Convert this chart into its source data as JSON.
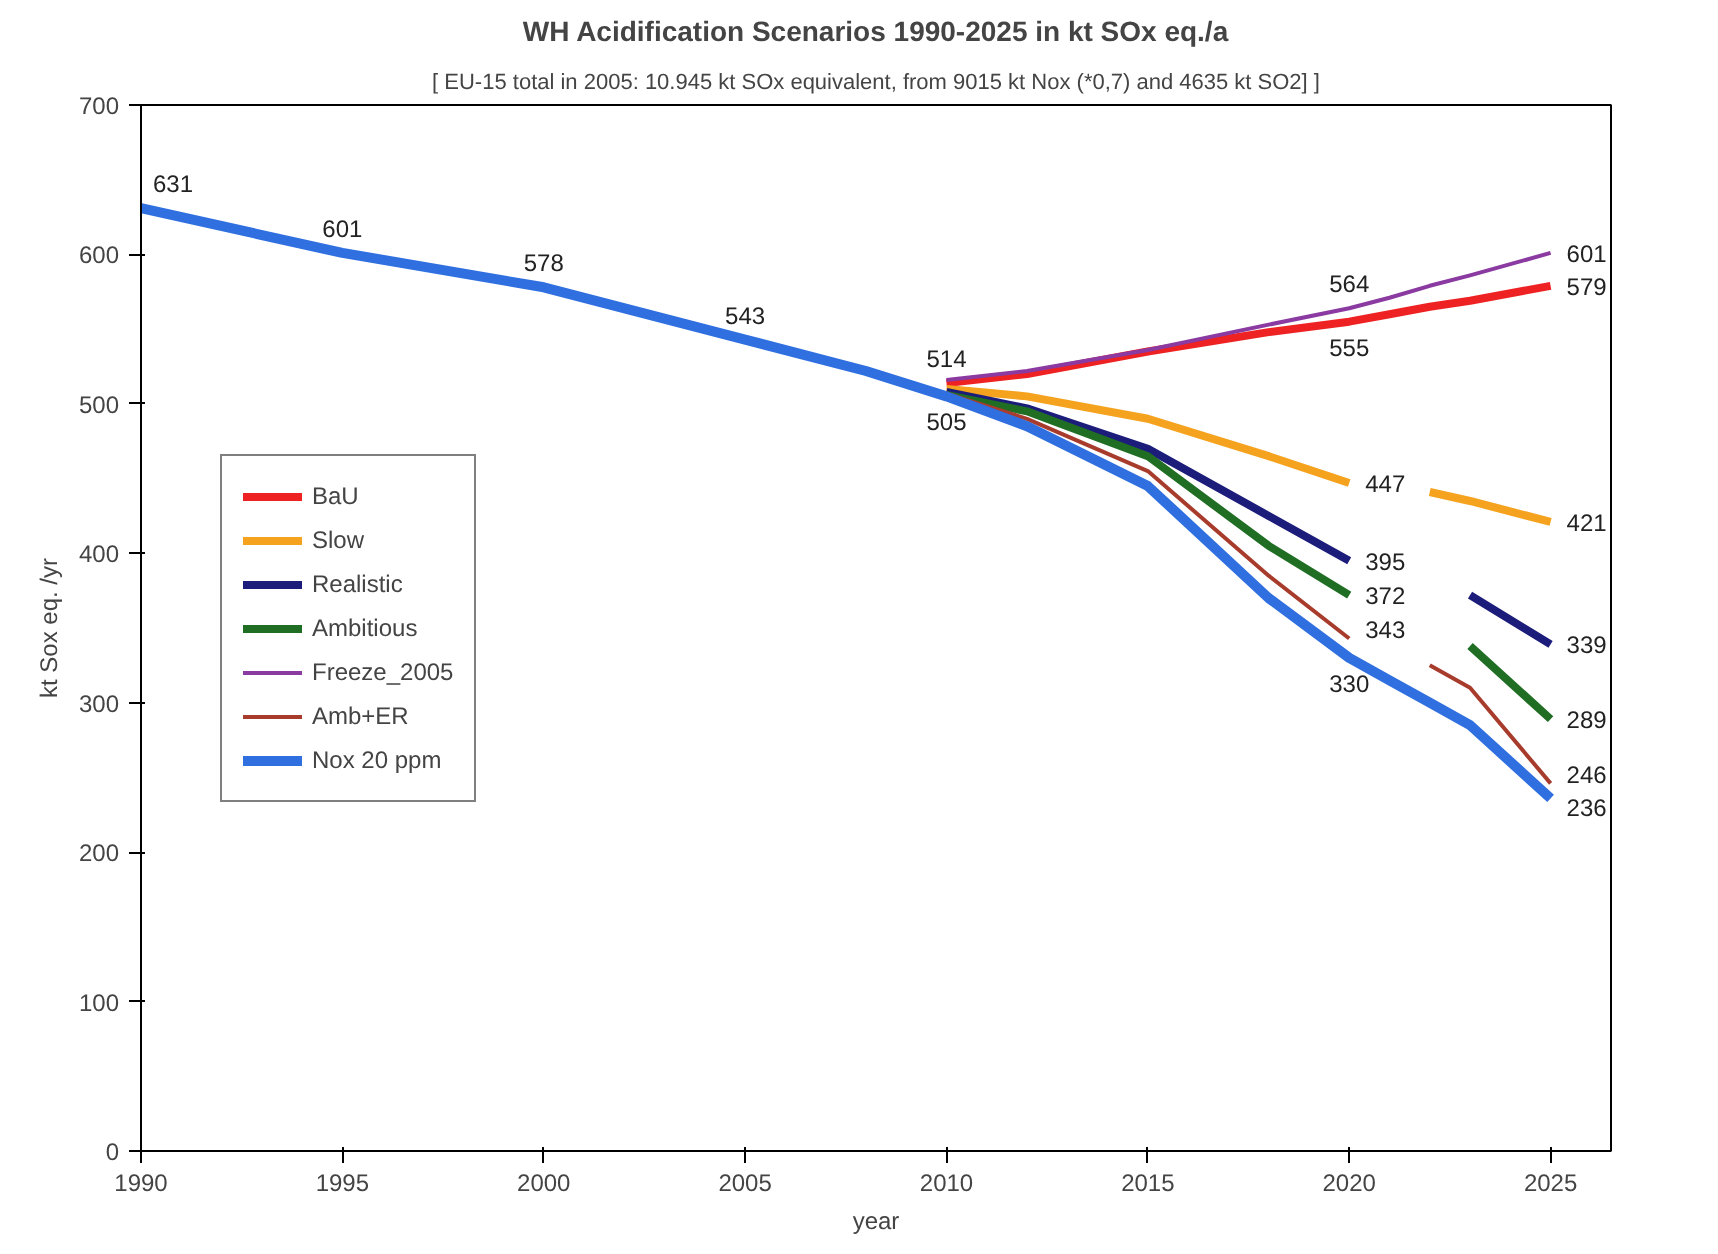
{
  "chart_data": {
    "type": "line",
    "title": "WH Acidification Scenarios 1990-2025 in kt SOx eq./a",
    "subtitle": "[ EU-15 total in 2005: 10.945 kt SOx equivalent, from 9015 kt Nox (*0,7) and 4635 kt SO2] ]",
    "xlabel": "year",
    "ylabel": "kt Sox eq. /yr",
    "x": [
      1990,
      1995,
      2000,
      2005,
      2008,
      2010,
      2012,
      2015,
      2018,
      2020,
      2021,
      2022,
      2023,
      2025
    ],
    "xlim": [
      1990,
      2026.5
    ],
    "xticks": [
      1990,
      1995,
      2000,
      2005,
      2010,
      2015,
      2020,
      2025
    ],
    "ylim": [
      0,
      700
    ],
    "yticks": [
      0,
      100,
      200,
      300,
      400,
      500,
      600,
      700
    ],
    "grid": false,
    "legend": "left",
    "marker": "none",
    "line_style": "solid",
    "series": [
      {
        "name": "BaU",
        "color": "#ee2222",
        "values": [
          null,
          null,
          null,
          null,
          null,
          514,
          520,
          535,
          548,
          555,
          560,
          565,
          569,
          579
        ],
        "value_labels": [
          null,
          null,
          null,
          null,
          null,
          "514",
          null,
          null,
          null,
          "555",
          null,
          null,
          null,
          "579"
        ]
      },
      {
        "name": "Slow",
        "color": "#f5a21f",
        "values": [
          null,
          null,
          null,
          null,
          null,
          510,
          505,
          490,
          465,
          447,
          null,
          441,
          435,
          421
        ],
        "value_labels": [
          null,
          null,
          null,
          null,
          null,
          null,
          null,
          null,
          null,
          "447",
          null,
          null,
          null,
          "421"
        ]
      },
      {
        "name": "Realistic",
        "color": "#1c1c7a",
        "values": [
          null,
          null,
          null,
          null,
          null,
          508,
          497,
          470,
          425,
          395,
          null,
          null,
          372,
          339
        ],
        "value_labels": [
          null,
          null,
          null,
          null,
          null,
          null,
          null,
          null,
          null,
          "395",
          null,
          null,
          null,
          "339"
        ]
      },
      {
        "name": "Ambitious",
        "color": "#1f6e23",
        "values": [
          null,
          null,
          null,
          null,
          null,
          506,
          495,
          465,
          405,
          372,
          null,
          null,
          338,
          289
        ],
        "value_labels": [
          null,
          null,
          null,
          null,
          null,
          null,
          null,
          null,
          null,
          "372",
          null,
          null,
          null,
          "289"
        ]
      },
      {
        "name": "Freeze_2005",
        "color": "#8a3aa0",
        "values": [
          null,
          null,
          null,
          null,
          null,
          516,
          522,
          536,
          553,
          564,
          571,
          579,
          586,
          601
        ],
        "value_labels": [
          null,
          null,
          null,
          null,
          null,
          null,
          null,
          null,
          null,
          "564",
          null,
          null,
          null,
          "601"
        ]
      },
      {
        "name": "Amb+ER",
        "color": "#a83c2c",
        "values": [
          null,
          null,
          null,
          null,
          null,
          507,
          490,
          455,
          385,
          343,
          null,
          325,
          310,
          246
        ],
        "value_labels": [
          null,
          null,
          null,
          null,
          null,
          null,
          null,
          null,
          null,
          "343",
          null,
          null,
          null,
          "246"
        ]
      },
      {
        "name": "Nox 20 ppm",
        "color": "#2f6fe0",
        "values": [
          631,
          601,
          578,
          543,
          522,
          505,
          485,
          445,
          370,
          330,
          315,
          300,
          285,
          236
        ],
        "value_labels": [
          "631",
          "601",
          "578",
          "543",
          null,
          "505",
          null,
          null,
          null,
          "330",
          null,
          null,
          null,
          "236"
        ]
      }
    ]
  }
}
